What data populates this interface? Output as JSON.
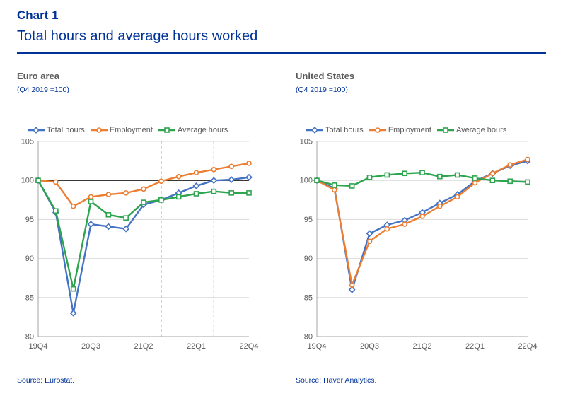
{
  "page": {
    "chart_label": "Chart 1",
    "title": "Total hours and average hours worked"
  },
  "chart_data": [
    {
      "type": "line",
      "title": "Euro area",
      "subtitle": "(Q4 2019 =100)",
      "source": "Source: Eurostat.",
      "x": [
        "19Q4",
        "20Q1",
        "20Q2",
        "20Q3",
        "20Q4",
        "21Q1",
        "21Q2",
        "21Q3",
        "21Q4",
        "22Q1",
        "22Q2",
        "22Q3",
        "22Q4"
      ],
      "x_tick_labels": [
        "19Q4",
        "20Q3",
        "21Q2",
        "22Q1",
        "22Q4"
      ],
      "ylim": [
        80,
        105
      ],
      "yticks": [
        80,
        85,
        90,
        95,
        100,
        105
      ],
      "reference_line_y": 100,
      "dashed_vlines": [
        "21Q3",
        "22Q2"
      ],
      "grid": "horizontal",
      "legend_position": "top-left",
      "series": [
        {
          "name": "Total hours",
          "color": "#4472C4",
          "marker": "diamond",
          "values": [
            100,
            95.9,
            83.0,
            94.4,
            94.1,
            93.8,
            96.9,
            97.5,
            98.4,
            99.3,
            100.0,
            100.1,
            100.4
          ]
        },
        {
          "name": "Employment",
          "color": "#ED7D31",
          "marker": "circle",
          "values": [
            100,
            99.8,
            96.7,
            97.9,
            98.2,
            98.4,
            98.9,
            99.9,
            100.5,
            101.0,
            101.4,
            101.8,
            102.2
          ]
        },
        {
          "name": "Average hours",
          "color": "#2DA44E",
          "marker": "square",
          "values": [
            100,
            96.1,
            86.1,
            97.3,
            95.6,
            95.2,
            97.2,
            97.5,
            97.9,
            98.3,
            98.6,
            98.4,
            98.4
          ]
        }
      ]
    },
    {
      "type": "line",
      "title": "United States",
      "subtitle": "(Q4 2019 =100)",
      "source": "Source: Haver Analytics.",
      "x": [
        "19Q4",
        "20Q1",
        "20Q2",
        "20Q3",
        "20Q4",
        "21Q1",
        "21Q2",
        "21Q3",
        "21Q4",
        "22Q1",
        "22Q2",
        "22Q3",
        "22Q4"
      ],
      "x_tick_labels": [
        "19Q4",
        "20Q3",
        "21Q2",
        "22Q1",
        "22Q4"
      ],
      "ylim": [
        80,
        105
      ],
      "yticks": [
        80,
        85,
        90,
        95,
        100,
        105
      ],
      "reference_line_y": null,
      "dashed_vlines": [
        "22Q1"
      ],
      "grid": "horizontal",
      "legend_position": "top-left",
      "series": [
        {
          "name": "Total hours",
          "color": "#4472C4",
          "marker": "diamond",
          "values": [
            100,
            99.0,
            86.0,
            93.2,
            94.3,
            94.9,
            95.9,
            97.1,
            98.2,
            99.9,
            100.9,
            101.9,
            102.5
          ]
        },
        {
          "name": "Employment",
          "color": "#ED7D31",
          "marker": "circle",
          "values": [
            100,
            98.8,
            86.6,
            92.2,
            93.8,
            94.4,
            95.4,
            96.7,
            97.9,
            99.7,
            100.9,
            102.0,
            102.7
          ]
        },
        {
          "name": "Average hours",
          "color": "#2DA44E",
          "marker": "square",
          "values": [
            100,
            99.4,
            99.3,
            100.4,
            100.7,
            100.9,
            101.0,
            100.5,
            100.7,
            100.3,
            100.0,
            99.9,
            99.8
          ]
        }
      ]
    }
  ]
}
